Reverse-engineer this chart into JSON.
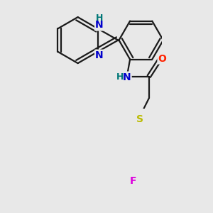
{
  "bg_color": "#e8e8e8",
  "bond_color": "#1a1a1a",
  "bond_width": 1.6,
  "dbo": 0.045,
  "atom_colors": {
    "N": "#0000cc",
    "O": "#ff2200",
    "S": "#bbbb00",
    "F": "#dd00dd",
    "H": "#007777",
    "C": "#1a1a1a"
  },
  "font_size": 10,
  "font_size_H": 9
}
